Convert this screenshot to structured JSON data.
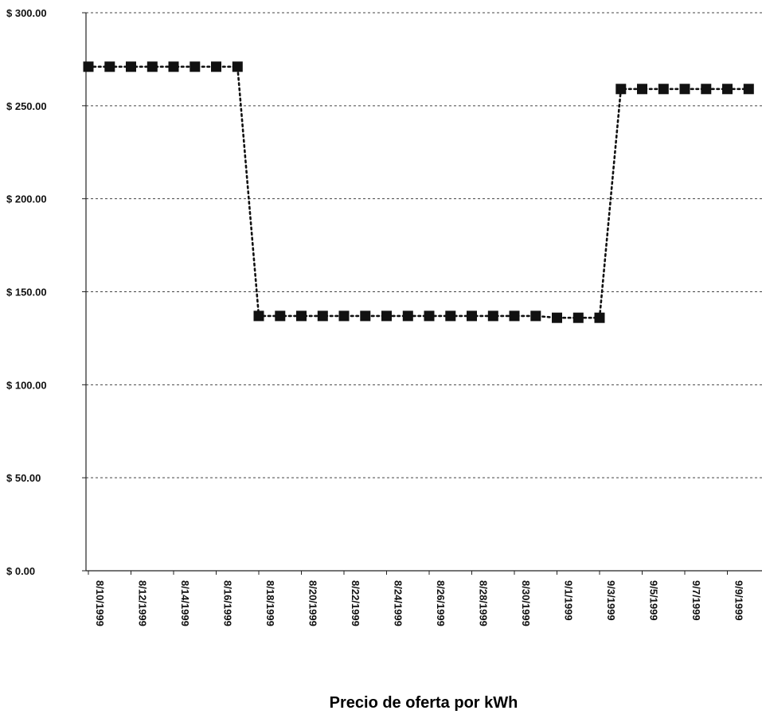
{
  "chart_data": {
    "type": "line",
    "title": "Precio de oferta por kWh",
    "xlabel": "",
    "ylabel": "",
    "x_tick_labels": [
      "8/10/1999",
      "8/12/1999",
      "8/14/1999",
      "8/16/1999",
      "8/18/1999",
      "8/20/1999",
      "8/22/1999",
      "8/24/1999",
      "8/26/1999",
      "8/28/1999",
      "8/30/1999",
      "9/1/1999",
      "9/3/1999",
      "9/5/1999",
      "9/7/1999",
      "9/9/1999"
    ],
    "y_tick_labels": [
      "$ 0.00",
      "$ 50.00",
      "$ 100.00",
      "$ 150.00",
      "$ 200.00",
      "$ 250.00",
      "$ 300.00"
    ],
    "y_tick_values": [
      0,
      50,
      100,
      150,
      200,
      250,
      300
    ],
    "ylim": [
      0,
      300
    ],
    "grid": "horizontal dashed",
    "legend": "none",
    "series": [
      {
        "color": "#111111",
        "line_style": "dotted",
        "marker": "square",
        "x": [
          "8/10/1999",
          "8/11/1999",
          "8/12/1999",
          "8/13/1999",
          "8/14/1999",
          "8/15/1999",
          "8/16/1999",
          "8/17/1999",
          "8/18/1999",
          "8/19/1999",
          "8/20/1999",
          "8/21/1999",
          "8/22/1999",
          "8/23/1999",
          "8/24/1999",
          "8/25/1999",
          "8/26/1999",
          "8/27/1999",
          "8/28/1999",
          "8/29/1999",
          "8/30/1999",
          "8/31/1999",
          "9/1/1999",
          "9/2/1999",
          "9/3/1999",
          "9/4/1999",
          "9/5/1999",
          "9/6/1999",
          "9/7/1999",
          "9/8/1999",
          "9/9/1999",
          "9/10/1999"
        ],
        "y": [
          271,
          271,
          271,
          271,
          271,
          271,
          271,
          271,
          137,
          137,
          137,
          137,
          137,
          137,
          137,
          137,
          137,
          137,
          137,
          137,
          137,
          137,
          136,
          136,
          136,
          259,
          259,
          259,
          259,
          259,
          259,
          259
        ]
      }
    ]
  }
}
